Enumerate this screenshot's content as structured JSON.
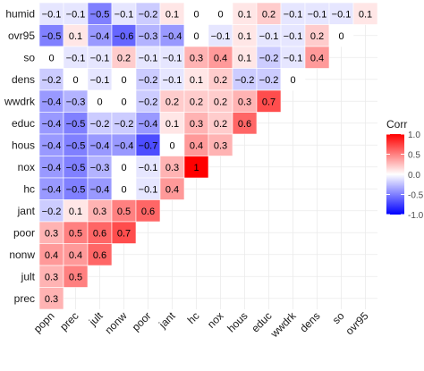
{
  "chart_data": {
    "type": "heatmap",
    "title": "",
    "xlabel": "",
    "ylabel": "",
    "rows": [
      "humid",
      "ovr95",
      "so",
      "dens",
      "wwdrk",
      "educ",
      "hous",
      "nox",
      "hc",
      "jant",
      "poor",
      "nonw",
      "jult",
      "prec"
    ],
    "cols": [
      "popn",
      "prec",
      "jult",
      "nonw",
      "poor",
      "jant",
      "hc",
      "nox",
      "hous",
      "educ",
      "wwdrk",
      "dens",
      "so",
      "ovr95"
    ],
    "values": [
      [
        -0.1,
        -0.1,
        -0.5,
        -0.1,
        -0.2,
        0.1,
        0,
        0,
        0.1,
        0.2,
        -0.1,
        -0.1,
        -0.1,
        0.1
      ],
      [
        -0.5,
        0.1,
        -0.4,
        -0.6,
        -0.3,
        -0.4,
        0,
        -0.1,
        0.1,
        -0.1,
        -0.1,
        0.2,
        0
      ],
      [
        0,
        -0.1,
        -0.1,
        0.2,
        -0.1,
        -0.1,
        0.3,
        0.4,
        0.1,
        -0.2,
        -0.1,
        0.4
      ],
      [
        -0.2,
        0,
        -0.1,
        0,
        -0.2,
        -0.1,
        0.1,
        0.2,
        -0.2,
        -0.2,
        0
      ],
      [
        -0.4,
        -0.3,
        0,
        0,
        -0.2,
        0.2,
        0.2,
        0.2,
        0.3,
        0.7
      ],
      [
        -0.4,
        -0.5,
        -0.2,
        -0.2,
        -0.4,
        0.1,
        0.3,
        0.2,
        0.6
      ],
      [
        -0.4,
        -0.5,
        -0.4,
        -0.4,
        -0.7,
        0,
        0.4,
        0.3
      ],
      [
        -0.4,
        -0.5,
        -0.3,
        0,
        -0.1,
        0.3,
        1
      ],
      [
        -0.4,
        -0.5,
        -0.4,
        0,
        -0.1,
        0.4
      ],
      [
        -0.2,
        0.1,
        0.3,
        0.5,
        0.6
      ],
      [
        0.3,
        0.5,
        0.6,
        0.7
      ],
      [
        0.4,
        0.4,
        0.6
      ],
      [
        0.3,
        0.5
      ],
      [
        0.3
      ]
    ],
    "legend": {
      "title": "Corr",
      "ticks": [
        "1.0",
        "0.5",
        "0.0",
        "-0.5",
        "-1.0"
      ],
      "placement": "right"
    },
    "colors": {
      "high": "#ff0000",
      "mid": "#ffffff",
      "low": "#0000ff",
      "panel": "#ffffff",
      "grid": "#ebebeb"
    },
    "grid": true
  }
}
